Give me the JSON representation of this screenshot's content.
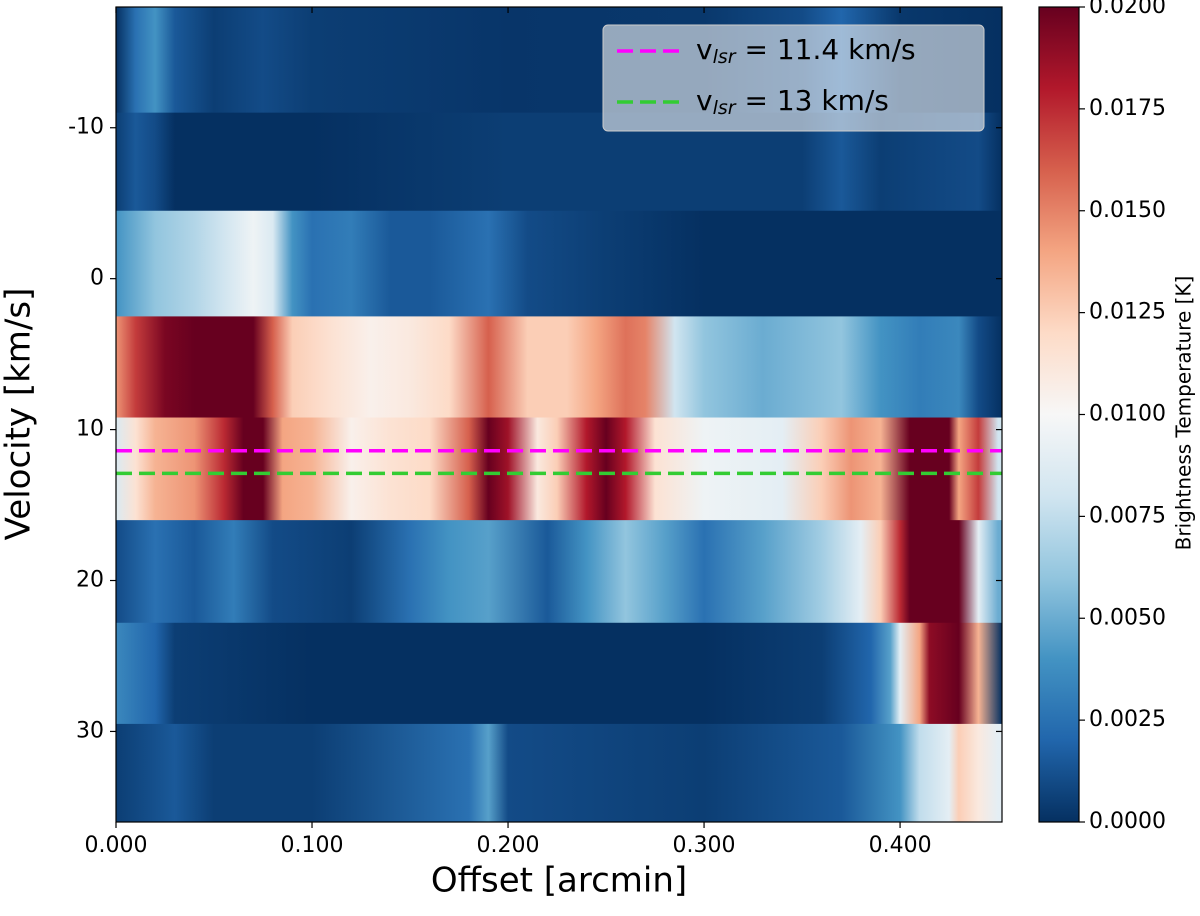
{
  "chart_data": {
    "type": "heatmap",
    "title": "",
    "xlabel": "Offset [arcmin]",
    "ylabel": "Velocity [km/s]",
    "xlim": [
      0.0,
      0.452
    ],
    "ylim": [
      -18.0,
      36.0
    ],
    "y_inverted": true,
    "x_ticks": [
      0.0,
      0.1,
      0.2,
      0.3,
      0.4
    ],
    "x_tick_labels": [
      "0.000",
      "0.100",
      "0.200",
      "0.300",
      "0.400"
    ],
    "y_ticks": [
      -10,
      0,
      10,
      20,
      30
    ],
    "y_tick_labels": [
      "-10",
      "0",
      "10",
      "20",
      "30"
    ],
    "colorbar": {
      "label": "Brightness Temperature [K]",
      "colormap": "RdBu_r",
      "vmin": 0.0,
      "vmax": 0.02,
      "ticks": [
        0.0,
        0.0025,
        0.005,
        0.0075,
        0.01,
        0.0125,
        0.015,
        0.0175,
        0.02
      ],
      "tick_labels": [
        "0.0000",
        "0.0025",
        "0.0050",
        "0.0075",
        "0.0100",
        "0.0125",
        "0.0150",
        "0.0175",
        "0.0200"
      ]
    },
    "velocity_channels": [
      {
        "v_start": -18.0,
        "v_end": -11.0,
        "profile": [
          [
            0.0,
            0.0
          ],
          [
            0.01,
            0.0025
          ],
          [
            0.02,
            0.004
          ],
          [
            0.03,
            0.0015
          ],
          [
            0.05,
            0.0005
          ],
          [
            0.075,
            0.001
          ],
          [
            0.1,
            0.0005
          ],
          [
            0.2,
            0.0002
          ],
          [
            0.3,
            0.0003
          ],
          [
            0.35,
            0.001
          ],
          [
            0.37,
            0.002
          ],
          [
            0.4,
            0.0003
          ],
          [
            0.452,
            0.0
          ]
        ]
      },
      {
        "v_start": -11.0,
        "v_end": -4.5,
        "profile": [
          [
            0.0,
            0.0005
          ],
          [
            0.01,
            0.0015
          ],
          [
            0.02,
            0.001
          ],
          [
            0.03,
            0.0
          ],
          [
            0.1,
            0.0
          ],
          [
            0.2,
            0.0005
          ],
          [
            0.35,
            0.0005
          ],
          [
            0.37,
            0.0015
          ],
          [
            0.39,
            0.0005
          ],
          [
            0.44,
            0.001
          ],
          [
            0.452,
            0.0
          ]
        ]
      },
      {
        "v_start": -4.5,
        "v_end": 2.5,
        "profile": [
          [
            0.0,
            0.004
          ],
          [
            0.02,
            0.006
          ],
          [
            0.04,
            0.007
          ],
          [
            0.055,
            0.008
          ],
          [
            0.07,
            0.0095
          ],
          [
            0.08,
            0.0085
          ],
          [
            0.09,
            0.004
          ],
          [
            0.1,
            0.0025
          ],
          [
            0.12,
            0.003
          ],
          [
            0.14,
            0.0015
          ],
          [
            0.16,
            0.0015
          ],
          [
            0.19,
            0.0025
          ],
          [
            0.21,
            0.001
          ],
          [
            0.25,
            0.0005
          ],
          [
            0.3,
            0.0
          ],
          [
            0.452,
            0.0
          ]
        ]
      },
      {
        "v_start": 2.5,
        "v_end": 9.2,
        "profile": [
          [
            0.0,
            0.0145
          ],
          [
            0.01,
            0.017
          ],
          [
            0.025,
            0.0195
          ],
          [
            0.04,
            0.0205
          ],
          [
            0.07,
            0.0205
          ],
          [
            0.08,
            0.016
          ],
          [
            0.09,
            0.0125
          ],
          [
            0.11,
            0.0115
          ],
          [
            0.13,
            0.0105
          ],
          [
            0.15,
            0.011
          ],
          [
            0.17,
            0.012
          ],
          [
            0.19,
            0.016
          ],
          [
            0.21,
            0.0125
          ],
          [
            0.23,
            0.0125
          ],
          [
            0.245,
            0.014
          ],
          [
            0.26,
            0.0155
          ],
          [
            0.27,
            0.015
          ],
          [
            0.285,
            0.008
          ],
          [
            0.3,
            0.006
          ],
          [
            0.33,
            0.005
          ],
          [
            0.37,
            0.006
          ],
          [
            0.39,
            0.004
          ],
          [
            0.41,
            0.003
          ],
          [
            0.43,
            0.0035
          ],
          [
            0.44,
            0.001
          ],
          [
            0.452,
            0.0
          ]
        ]
      },
      {
        "v_start": 9.2,
        "v_end": 16.0,
        "profile": [
          [
            0.0,
            0.0085
          ],
          [
            0.01,
            0.0115
          ],
          [
            0.02,
            0.0135
          ],
          [
            0.04,
            0.0145
          ],
          [
            0.055,
            0.0175
          ],
          [
            0.065,
            0.021
          ],
          [
            0.075,
            0.02
          ],
          [
            0.085,
            0.014
          ],
          [
            0.1,
            0.0135
          ],
          [
            0.12,
            0.0105
          ],
          [
            0.14,
            0.0115
          ],
          [
            0.16,
            0.012
          ],
          [
            0.18,
            0.016
          ],
          [
            0.19,
            0.02
          ],
          [
            0.2,
            0.0185
          ],
          [
            0.215,
            0.011
          ],
          [
            0.225,
            0.0125
          ],
          [
            0.24,
            0.018
          ],
          [
            0.25,
            0.021
          ],
          [
            0.26,
            0.018
          ],
          [
            0.275,
            0.0115
          ],
          [
            0.3,
            0.0095
          ],
          [
            0.34,
            0.009
          ],
          [
            0.36,
            0.0125
          ],
          [
            0.375,
            0.0145
          ],
          [
            0.39,
            0.0135
          ],
          [
            0.405,
            0.0205
          ],
          [
            0.425,
            0.021
          ],
          [
            0.43,
            0.014
          ],
          [
            0.44,
            0.017
          ],
          [
            0.45,
            0.008
          ]
        ]
      },
      {
        "v_start": 16.0,
        "v_end": 22.8,
        "profile": [
          [
            0.0,
            0.001
          ],
          [
            0.02,
            0.0025
          ],
          [
            0.04,
            0.0015
          ],
          [
            0.06,
            0.003
          ],
          [
            0.08,
            0.001
          ],
          [
            0.12,
            0.0005
          ],
          [
            0.15,
            0.0025
          ],
          [
            0.17,
            0.004
          ],
          [
            0.19,
            0.0045
          ],
          [
            0.22,
            0.0015
          ],
          [
            0.24,
            0.004
          ],
          [
            0.26,
            0.006
          ],
          [
            0.28,
            0.0045
          ],
          [
            0.3,
            0.0025
          ],
          [
            0.33,
            0.0045
          ],
          [
            0.36,
            0.0065
          ],
          [
            0.38,
            0.009
          ],
          [
            0.39,
            0.0125
          ],
          [
            0.4,
            0.0175
          ],
          [
            0.405,
            0.0205
          ],
          [
            0.43,
            0.021
          ],
          [
            0.44,
            0.009
          ],
          [
            0.45,
            0.005
          ]
        ]
      },
      {
        "v_start": 22.8,
        "v_end": 29.5,
        "profile": [
          [
            0.0,
            0.0035
          ],
          [
            0.02,
            0.002
          ],
          [
            0.03,
            0.0005
          ],
          [
            0.1,
            0.0
          ],
          [
            0.3,
            0.0
          ],
          [
            0.36,
            0.0005
          ],
          [
            0.385,
            0.002
          ],
          [
            0.395,
            0.0045
          ],
          [
            0.4,
            0.009
          ],
          [
            0.41,
            0.014
          ],
          [
            0.415,
            0.019
          ],
          [
            0.43,
            0.02
          ],
          [
            0.44,
            0.0135
          ],
          [
            0.452,
            0.0
          ]
        ]
      },
      {
        "v_start": 29.5,
        "v_end": 36.0,
        "profile": [
          [
            0.0,
            0.0005
          ],
          [
            0.03,
            0.0015
          ],
          [
            0.05,
            0.0005
          ],
          [
            0.1,
            0.0005
          ],
          [
            0.18,
            0.0025
          ],
          [
            0.19,
            0.0045
          ],
          [
            0.2,
            0.001
          ],
          [
            0.3,
            0.0005
          ],
          [
            0.37,
            0.0015
          ],
          [
            0.4,
            0.004
          ],
          [
            0.41,
            0.0075
          ],
          [
            0.425,
            0.009
          ],
          [
            0.43,
            0.0125
          ],
          [
            0.44,
            0.011
          ],
          [
            0.45,
            0.009
          ]
        ]
      }
    ],
    "reference_lines": [
      {
        "label_main": "v",
        "label_sub": "lsr",
        "label_value": " = 11.4 km/s",
        "velocity": 11.4,
        "color": "#ff00ff"
      },
      {
        "label_main": "v",
        "label_sub": "lsr",
        "label_value": " = 13 km/s",
        "velocity": 12.9,
        "color": "#33cc33"
      }
    ],
    "legend_position": "top-right"
  }
}
